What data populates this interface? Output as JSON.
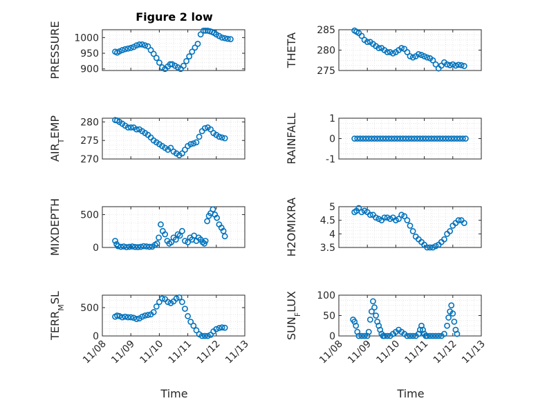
{
  "figure": {
    "title": "Figure 2 low",
    "x_ticks": [
      "11/08",
      "11/09",
      "11/10",
      "11/11",
      "11/12",
      "11/13"
    ],
    "x_range": [
      0,
      5
    ],
    "xlabel": "Time",
    "marker_color": "#0072BD"
  },
  "chart_data": [
    {
      "type": "scatter",
      "ylabel": "PRESSURE",
      "ylim": [
        895,
        1025
      ],
      "yticks": [
        900,
        950,
        1000
      ],
      "grid": true,
      "x": [
        0.45,
        0.52,
        0.6,
        0.7,
        0.8,
        0.9,
        1.0,
        1.1,
        1.2,
        1.3,
        1.4,
        1.5,
        1.6,
        1.7,
        1.8,
        1.9,
        2.0,
        2.1,
        2.2,
        2.3,
        2.38,
        2.45,
        2.55,
        2.65,
        2.75,
        2.85,
        2.95,
        3.05,
        3.15,
        3.25,
        3.35,
        3.45,
        3.55,
        3.62,
        3.7,
        3.78,
        3.85,
        3.92,
        4.0,
        4.1,
        4.2,
        4.3,
        4.4,
        4.5
      ],
      "y": [
        955,
        952,
        956,
        960,
        963,
        965,
        967,
        970,
        975,
        978,
        978,
        975,
        972,
        960,
        948,
        935,
        920,
        905,
        900,
        908,
        915,
        915,
        910,
        905,
        900,
        910,
        925,
        940,
        955,
        968,
        980,
        1010,
        1022,
        1022,
        1022,
        1020,
        1018,
        1015,
        1010,
        1005,
        1000,
        998,
        996,
        995
      ]
    },
    {
      "type": "scatter",
      "ylabel": "THETA",
      "ylim": [
        275,
        285
      ],
      "yticks": [
        275,
        280,
        285
      ],
      "grid": true,
      "x": [
        0.55,
        0.62,
        0.7,
        0.8,
        0.9,
        1.0,
        1.1,
        1.2,
        1.3,
        1.4,
        1.5,
        1.6,
        1.7,
        1.8,
        1.9,
        2.0,
        2.1,
        2.2,
        2.3,
        2.4,
        2.5,
        2.6,
        2.7,
        2.8,
        2.9,
        3.0,
        3.1,
        3.2,
        3.3,
        3.4,
        3.5,
        3.6,
        3.7,
        3.8,
        3.9,
        4.0,
        4.1,
        4.2,
        4.3,
        4.4
      ],
      "y": [
        284.8,
        284.5,
        284.2,
        283.5,
        282.5,
        282,
        282,
        281.5,
        281,
        280.5,
        280.5,
        280,
        279.5,
        279.5,
        279.2,
        279.5,
        280,
        280.5,
        280.3,
        279.5,
        278.5,
        278.2,
        278.5,
        279,
        278.8,
        278.5,
        278.2,
        278,
        277.5,
        276.5,
        275.5,
        276.2,
        277,
        276.5,
        276.3,
        276.5,
        276.2,
        276.4,
        276.3,
        276.1
      ]
    },
    {
      "type": "scatter",
      "ylabel": "AIR_TEMP",
      "ylim": [
        270,
        281
      ],
      "yticks": [
        270,
        275,
        280
      ],
      "grid": true,
      "x": [
        0.45,
        0.52,
        0.6,
        0.7,
        0.8,
        0.9,
        1.0,
        1.1,
        1.2,
        1.3,
        1.4,
        1.5,
        1.6,
        1.7,
        1.8,
        1.9,
        2.0,
        2.1,
        2.2,
        2.3,
        2.4,
        2.5,
        2.6,
        2.7,
        2.8,
        2.9,
        3.0,
        3.1,
        3.2,
        3.3,
        3.4,
        3.5,
        3.6,
        3.7,
        3.8,
        3.9,
        4.0,
        4.1,
        4.2,
        4.3
      ],
      "y": [
        280.5,
        280.4,
        280,
        279.5,
        279,
        278.5,
        278.5,
        278.5,
        278,
        278,
        277.5,
        277,
        276.5,
        275.8,
        275,
        274.5,
        274,
        273.5,
        273,
        272.5,
        273,
        272,
        271.5,
        271,
        271.5,
        272.5,
        273.5,
        274,
        274.2,
        274.5,
        276,
        277.5,
        278.3,
        278.5,
        278,
        277,
        276.5,
        276,
        275.8,
        275.6
      ]
    },
    {
      "type": "scatter",
      "ylabel": "RAINFALL",
      "ylim": [
        -1,
        1
      ],
      "yticks": [
        -1,
        0,
        1
      ],
      "grid": true,
      "x": [
        0.55,
        0.65,
        0.75,
        0.85,
        0.95,
        1.05,
        1.15,
        1.25,
        1.35,
        1.45,
        1.55,
        1.65,
        1.75,
        1.85,
        1.95,
        2.05,
        2.15,
        2.25,
        2.35,
        2.45,
        2.55,
        2.65,
        2.75,
        2.85,
        2.95,
        3.05,
        3.15,
        3.25,
        3.35,
        3.45,
        3.55,
        3.65,
        3.75,
        3.85,
        3.95,
        4.05,
        4.15,
        4.25,
        4.35,
        4.45
      ],
      "y": [
        0,
        0,
        0,
        0,
        0,
        0,
        0,
        0,
        0,
        0,
        0,
        0,
        0,
        0,
        0,
        0,
        0,
        0,
        0,
        0,
        0,
        0,
        0,
        0,
        0,
        0,
        0,
        0,
        0,
        0,
        0,
        0,
        0,
        0,
        0,
        0,
        0,
        0,
        0,
        0
      ]
    },
    {
      "type": "scatter",
      "ylabel": "MIXDEPTH",
      "ylim": [
        0,
        620
      ],
      "yticks": [
        0,
        500
      ],
      "grid": true,
      "x": [
        0.45,
        0.5,
        0.55,
        0.65,
        0.75,
        0.85,
        0.95,
        1.05,
        1.15,
        1.25,
        1.35,
        1.45,
        1.55,
        1.65,
        1.75,
        1.85,
        1.92,
        1.98,
        2.05,
        2.12,
        2.2,
        2.28,
        2.35,
        2.42,
        2.5,
        2.58,
        2.65,
        2.72,
        2.8,
        2.9,
        3.0,
        3.08,
        3.15,
        3.22,
        3.3,
        3.38,
        3.45,
        3.52,
        3.58,
        3.62,
        3.68,
        3.74,
        3.8,
        3.88,
        3.95,
        4.02,
        4.1,
        4.18,
        4.25,
        4.3
      ],
      "y": [
        100,
        50,
        20,
        10,
        15,
        5,
        10,
        15,
        8,
        5,
        10,
        20,
        15,
        10,
        12,
        40,
        60,
        150,
        350,
        250,
        200,
        100,
        60,
        80,
        150,
        120,
        200,
        180,
        250,
        100,
        80,
        150,
        120,
        180,
        100,
        150,
        120,
        80,
        60,
        100,
        400,
        480,
        520,
        580,
        500,
        450,
        350,
        300,
        250,
        170
      ]
    },
    {
      "type": "scatter",
      "ylabel": "H2OMIXRA",
      "ylim": [
        3.5,
        5
      ],
      "yticks": [
        3.5,
        4,
        4.5,
        5
      ],
      "grid": true,
      "x": [
        0.55,
        0.62,
        0.7,
        0.8,
        0.9,
        1.0,
        1.1,
        1.2,
        1.3,
        1.4,
        1.5,
        1.6,
        1.7,
        1.8,
        1.9,
        2.0,
        2.1,
        2.2,
        2.3,
        2.4,
        2.5,
        2.6,
        2.7,
        2.8,
        2.9,
        3.0,
        3.1,
        3.2,
        3.3,
        3.4,
        3.5,
        3.6,
        3.7,
        3.8,
        3.9,
        4.0,
        4.1,
        4.2,
        4.3,
        4.4
      ],
      "y": [
        4.8,
        4.85,
        4.95,
        4.8,
        4.85,
        4.8,
        4.7,
        4.7,
        4.6,
        4.55,
        4.5,
        4.6,
        4.6,
        4.55,
        4.6,
        4.5,
        4.55,
        4.7,
        4.65,
        4.5,
        4.3,
        4.1,
        3.9,
        3.8,
        3.7,
        3.6,
        3.5,
        3.5,
        3.5,
        3.55,
        3.6,
        3.7,
        3.8,
        4.0,
        4.1,
        4.3,
        4.4,
        4.5,
        4.5,
        4.4
      ]
    },
    {
      "type": "scatter",
      "ylabel": "TERR_MSL",
      "ylim": [
        0,
        720
      ],
      "yticks": [
        0,
        500
      ],
      "grid": true,
      "x": [
        0.45,
        0.52,
        0.6,
        0.7,
        0.8,
        0.9,
        1.0,
        1.1,
        1.2,
        1.3,
        1.4,
        1.5,
        1.6,
        1.7,
        1.8,
        1.9,
        2.0,
        2.1,
        2.2,
        2.3,
        2.4,
        2.5,
        2.6,
        2.7,
        2.8,
        2.9,
        3.0,
        3.1,
        3.2,
        3.3,
        3.4,
        3.5,
        3.6,
        3.7,
        3.8,
        3.9,
        4.0,
        4.1,
        4.2,
        4.3
      ],
      "y": [
        340,
        360,
        350,
        330,
        340,
        330,
        330,
        320,
        300,
        310,
        340,
        360,
        370,
        380,
        420,
        520,
        600,
        660,
        650,
        600,
        580,
        610,
        660,
        680,
        600,
        480,
        350,
        250,
        180,
        100,
        30,
        0,
        0,
        0,
        20,
        80,
        120,
        140,
        150,
        145
      ]
    },
    {
      "type": "scatter",
      "ylabel": "SUN_FLUX",
      "ylim": [
        0,
        100
      ],
      "yticks": [
        0,
        50,
        100
      ],
      "grid": true,
      "x": [
        0.5,
        0.55,
        0.6,
        0.65,
        0.7,
        0.8,
        0.9,
        1.0,
        1.05,
        1.1,
        1.15,
        1.2,
        1.25,
        1.3,
        1.35,
        1.4,
        1.45,
        1.5,
        1.55,
        1.6,
        1.7,
        1.8,
        1.9,
        2.0,
        2.1,
        2.2,
        2.3,
        2.4,
        2.5,
        2.6,
        2.7,
        2.8,
        2.85,
        2.9,
        2.95,
        3.0,
        3.05,
        3.1,
        3.2,
        3.3,
        3.4,
        3.5,
        3.6,
        3.7,
        3.8,
        3.85,
        3.9,
        3.95,
        4.0,
        4.05,
        4.1,
        4.15
      ],
      "y": [
        40,
        35,
        25,
        10,
        0,
        0,
        0,
        0,
        10,
        40,
        60,
        85,
        70,
        50,
        35,
        25,
        15,
        5,
        0,
        0,
        0,
        0,
        5,
        10,
        15,
        10,
        5,
        0,
        0,
        0,
        0,
        5,
        15,
        25,
        15,
        5,
        0,
        0,
        0,
        0,
        0,
        0,
        0,
        5,
        25,
        45,
        60,
        75,
        55,
        35,
        15,
        5
      ]
    }
  ]
}
